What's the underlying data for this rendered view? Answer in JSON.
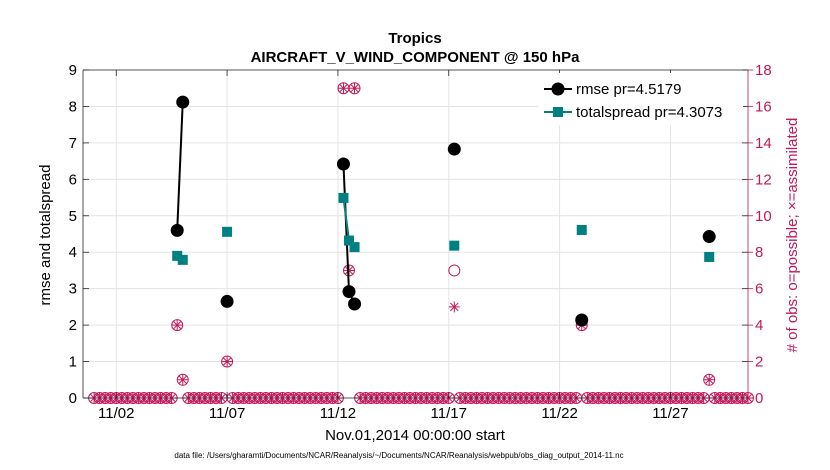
{
  "chart_data": {
    "type": "line",
    "title": "Tropics",
    "subtitle": "AIRCRAFT_V_WIND_COMPONENT @ 150 hPa",
    "xlabel": "Nov.01,2014 00:00:00 start",
    "ylabel": "rmse and totalspread",
    "y2label": "# of obs: o=possible; ×=assimilated",
    "xlim": [
      0.5,
      30.5
    ],
    "ylim": [
      0,
      9
    ],
    "y2lim": [
      0,
      18
    ],
    "xticks": [
      2,
      7,
      12,
      17,
      22,
      27
    ],
    "xtick_labels": [
      "11/02",
      "11/07",
      "11/12",
      "11/17",
      "11/22",
      "11/27"
    ],
    "yticks": [
      0,
      1,
      2,
      3,
      4,
      5,
      6,
      7,
      8,
      9
    ],
    "y2ticks": [
      0,
      2,
      4,
      6,
      8,
      10,
      12,
      14,
      16,
      18
    ],
    "grid": true,
    "legend_position": "top-right",
    "series": [
      {
        "name": "rmse pr=4.5179",
        "color": "#000000",
        "marker": "circle",
        "points": [
          [
            4.75,
            4.6
          ],
          [
            5.0,
            8.12
          ],
          [
            7.0,
            2.65
          ],
          [
            12.25,
            6.42
          ],
          [
            12.5,
            2.92
          ],
          [
            12.75,
            2.58
          ],
          [
            17.25,
            6.83
          ],
          [
            23.0,
            2.14
          ],
          [
            28.75,
            4.43
          ]
        ],
        "segments": [
          [
            [
              4.75,
              4.6
            ],
            [
              5.0,
              8.12
            ]
          ],
          [
            [
              12.25,
              6.42
            ],
            [
              12.5,
              2.92
            ],
            [
              12.75,
              2.58
            ]
          ]
        ]
      },
      {
        "name": "totalspread pr=4.3073",
        "color": "#008080",
        "marker": "square",
        "points": [
          [
            4.75,
            3.9
          ],
          [
            5.0,
            3.79
          ],
          [
            7.0,
            4.56
          ],
          [
            12.25,
            5.49
          ],
          [
            12.5,
            4.32
          ],
          [
            12.75,
            4.14
          ],
          [
            17.25,
            4.18
          ],
          [
            23.0,
            4.61
          ],
          [
            28.75,
            3.87
          ]
        ],
        "segments": [
          [
            [
              4.75,
              3.9
            ],
            [
              5.0,
              3.79
            ]
          ],
          [
            [
              12.25,
              5.49
            ],
            [
              12.5,
              4.32
            ],
            [
              12.75,
              4.14
            ]
          ]
        ]
      }
    ],
    "obs_possible": [
      [
        4.75,
        4
      ],
      [
        5.0,
        1
      ],
      [
        7.0,
        2
      ],
      [
        12.25,
        17
      ],
      [
        12.5,
        7
      ],
      [
        12.75,
        17
      ],
      [
        17.25,
        7
      ],
      [
        23.0,
        4
      ],
      [
        28.75,
        1
      ]
    ],
    "obs_assimilated": [
      [
        4.75,
        4
      ],
      [
        5.0,
        1
      ],
      [
        7.0,
        2
      ],
      [
        12.25,
        17
      ],
      [
        12.5,
        7
      ],
      [
        12.75,
        17
      ],
      [
        17.25,
        5
      ],
      [
        23.0,
        4
      ],
      [
        28.75,
        1
      ]
    ],
    "obs_color": "#c2185b",
    "zero_obs_step": 0.25,
    "footnote": "data file: /Users/gharamti/Documents/NCAR/Reanalysis/~/Documents/NCAR/Reanalysis/webpub/obs_diag_output_2014-11.nc"
  }
}
